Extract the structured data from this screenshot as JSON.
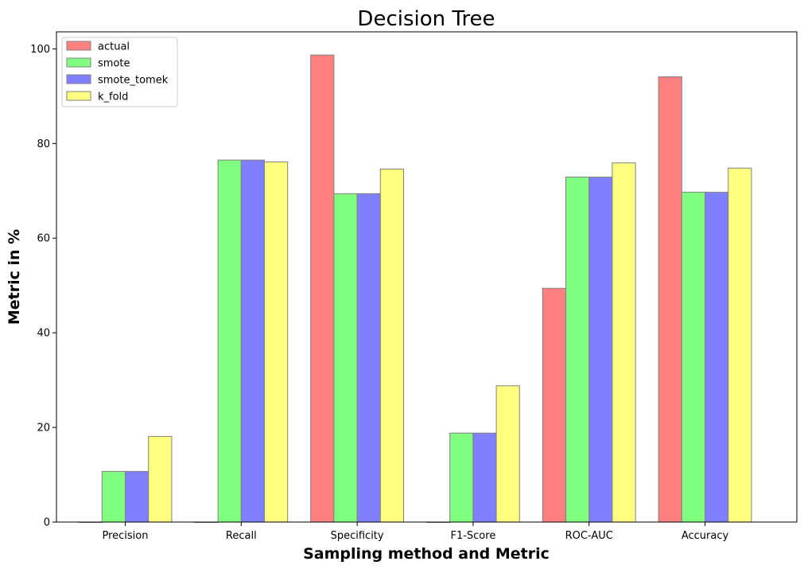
{
  "chart_data": {
    "type": "bar",
    "title": "Decision Tree",
    "xlabel": "Sampling method and Metric",
    "ylabel": "Metric in %",
    "categories": [
      "Precision",
      "Recall",
      "Specificity",
      "F1-Score",
      "ROC-AUC",
      "Accuracy"
    ],
    "series": [
      {
        "name": "actual",
        "color": "#ff8080",
        "values": [
          0,
          0,
          98.7,
          0,
          49.4,
          94.1
        ]
      },
      {
        "name": "smote",
        "color": "#80ff80",
        "values": [
          10.7,
          76.5,
          69.4,
          18.8,
          72.9,
          69.7
        ]
      },
      {
        "name": "smote_tomek",
        "color": "#8080ff",
        "values": [
          10.7,
          76.5,
          69.4,
          18.8,
          72.9,
          69.7
        ]
      },
      {
        "name": "k_fold",
        "color": "#ffff80",
        "values": [
          18.1,
          76.1,
          74.6,
          28.8,
          75.9,
          74.8
        ]
      }
    ],
    "yticks": [
      0,
      20,
      40,
      60,
      80,
      100
    ],
    "ylim": [
      0,
      103.6
    ],
    "grid": false,
    "legend_position": "top-left",
    "bar_edge_color": "#808080"
  }
}
